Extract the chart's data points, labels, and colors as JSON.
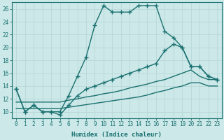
{
  "xlabel": "Humidex (Indice chaleur)",
  "xlim": [
    -0.5,
    23.5
  ],
  "ylim": [
    9,
    27
  ],
  "xticks": [
    0,
    1,
    2,
    3,
    4,
    5,
    6,
    7,
    8,
    9,
    10,
    11,
    12,
    13,
    14,
    15,
    16,
    17,
    18,
    19,
    20,
    21,
    22,
    23
  ],
  "yticks": [
    10,
    12,
    14,
    16,
    18,
    20,
    22,
    24,
    26
  ],
  "bg_color": "#cce8e8",
  "line_color": "#1a7070",
  "grid_color": "#b8d8d8",
  "lines": [
    {
      "x": [
        0,
        1,
        2,
        3,
        4,
        5,
        6,
        7,
        8,
        9,
        10,
        11,
        12,
        13,
        14,
        15,
        16,
        17,
        18,
        19,
        20,
        21,
        22,
        23
      ],
      "y": [
        13.5,
        10.0,
        11.0,
        10.0,
        10.0,
        10.0,
        12.5,
        15.5,
        18.5,
        23.5,
        26.5,
        25.5,
        25.5,
        25.5,
        26.5,
        26.5,
        26.5,
        22.5,
        21.5,
        20.0,
        17.0,
        17.0,
        15.5,
        15.0
      ],
      "marker": "+",
      "markersize": 4,
      "linewidth": 1.0,
      "has_marker": true
    },
    {
      "x": [
        0,
        1,
        2,
        3,
        4,
        5,
        6,
        7,
        8,
        9,
        10,
        11,
        12,
        13,
        14,
        15,
        16,
        17,
        18,
        19,
        20,
        21,
        22,
        23
      ],
      "y": [
        13.5,
        10.0,
        11.0,
        10.0,
        10.0,
        9.5,
        11.0,
        12.5,
        13.5,
        14.0,
        14.5,
        15.0,
        15.5,
        16.0,
        16.5,
        17.0,
        17.5,
        19.5,
        20.5,
        20.0,
        17.0,
        17.0,
        15.5,
        15.0
      ],
      "marker": "+",
      "markersize": 4,
      "linewidth": 1.0,
      "has_marker": true
    },
    {
      "x": [
        0,
        1,
        2,
        3,
        4,
        5,
        6,
        7,
        8,
        9,
        10,
        11,
        12,
        13,
        14,
        15,
        16,
        17,
        18,
        19,
        20,
        21,
        22,
        23
      ],
      "y": [
        11.5,
        11.5,
        11.5,
        11.5,
        11.5,
        11.5,
        11.8,
        12.0,
        12.3,
        12.5,
        12.8,
        13.0,
        13.3,
        13.7,
        14.0,
        14.3,
        14.7,
        15.0,
        15.5,
        16.0,
        16.5,
        15.5,
        15.0,
        15.0
      ],
      "marker": null,
      "markersize": 0,
      "linewidth": 1.0,
      "has_marker": false
    },
    {
      "x": [
        0,
        1,
        2,
        3,
        4,
        5,
        6,
        7,
        8,
        9,
        10,
        11,
        12,
        13,
        14,
        15,
        16,
        17,
        18,
        19,
        20,
        21,
        22,
        23
      ],
      "y": [
        10.5,
        10.5,
        10.5,
        10.5,
        10.5,
        10.5,
        10.7,
        10.9,
        11.1,
        11.3,
        11.5,
        11.7,
        11.9,
        12.1,
        12.3,
        12.6,
        13.0,
        13.3,
        13.7,
        14.0,
        14.5,
        14.5,
        14.0,
        14.0
      ],
      "marker": null,
      "markersize": 0,
      "linewidth": 1.0,
      "has_marker": false
    }
  ]
}
